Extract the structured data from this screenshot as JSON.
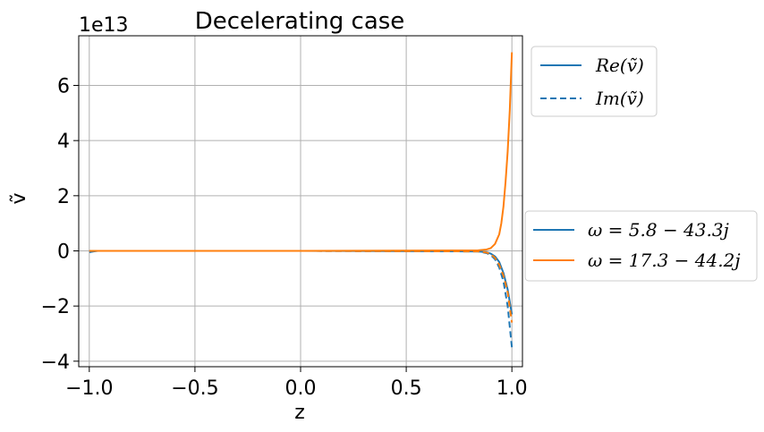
{
  "chart_data": {
    "type": "line",
    "title": "Decelerating case",
    "xlabel": "z",
    "ylabel": "ṽ",
    "y_offset_text": "1e13",
    "xlim": [
      -1.05,
      1.05
    ],
    "ylim": [
      -4.2,
      7.8
    ],
    "y_scale": 10000000000000.0,
    "xticks": [
      -1.0,
      -0.5,
      0.0,
      0.5,
      1.0
    ],
    "xtick_labels": [
      "−1.0",
      "−0.5",
      "0.0",
      "0.5",
      "1.0"
    ],
    "yticks": [
      -4,
      -2,
      0,
      2,
      4,
      6
    ],
    "ytick_labels": [
      "−4",
      "−2",
      "0",
      "2",
      "4",
      "6"
    ],
    "grid": true,
    "legends": [
      {
        "placement": "upper right outside",
        "entries": [
          {
            "label": "Re(ṽ)",
            "style": "solid",
            "color": "#1f77b4"
          },
          {
            "label": "Im(ṽ)",
            "style": "dashed",
            "color": "#1f77b4"
          }
        ]
      },
      {
        "placement": "center right outside",
        "entries": [
          {
            "label": "ω = 5.8 − 43.3j",
            "style": "solid",
            "color": "#1f77b4"
          },
          {
            "label": "ω = 17.3 − 44.2j",
            "style": "solid",
            "color": "#ff7f0e"
          }
        ]
      }
    ],
    "series": [
      {
        "name": "ω = 5.8 − 43.3j",
        "component": "Re(ṽ)",
        "color": "#1f77b4",
        "dash": "solid",
        "x": [
          -1.0,
          -0.98,
          -0.96,
          0.0,
          0.84,
          0.88,
          0.9,
          0.92,
          0.94,
          0.96,
          0.98,
          1.0
        ],
        "y": [
          -0.05,
          -0.02,
          0.0,
          0.0,
          -0.02,
          -0.05,
          -0.1,
          -0.2,
          -0.4,
          -0.8,
          -1.4,
          -2.3
        ]
      },
      {
        "name": "ω = 5.8 − 43.3j",
        "component": "Im(ṽ)",
        "color": "#1f77b4",
        "dash": "dashed",
        "x": [
          -1.0,
          -0.98,
          0.0,
          0.84,
          0.88,
          0.9,
          0.92,
          0.94,
          0.96,
          0.98,
          1.0
        ],
        "y": [
          0.0,
          0.0,
          0.0,
          -0.02,
          -0.08,
          -0.15,
          -0.3,
          -0.6,
          -1.1,
          -2.0,
          -3.5
        ]
      },
      {
        "name": "ω = 17.3 − 44.2j",
        "component": "Re(ṽ)",
        "color": "#ff7f0e",
        "dash": "solid",
        "x": [
          -1.0,
          0.0,
          0.84,
          0.88,
          0.9,
          0.92,
          0.94,
          0.95,
          0.96,
          0.97,
          0.98,
          0.99,
          1.0
        ],
        "y": [
          0.0,
          0.0,
          0.02,
          0.05,
          0.1,
          0.25,
          0.6,
          1.0,
          1.6,
          2.5,
          3.6,
          5.1,
          7.2
        ]
      },
      {
        "name": "ω = 17.3 − 44.2j",
        "component": "Im(ṽ)",
        "color": "#ff7f0e",
        "dash": "dashed",
        "x": [
          -1.0,
          0.0,
          0.84,
          0.88,
          0.9,
          0.92,
          0.94,
          0.96,
          0.98,
          1.0
        ],
        "y": [
          0.0,
          0.0,
          -0.02,
          -0.06,
          -0.12,
          -0.25,
          -0.5,
          -0.9,
          -1.5,
          -2.6
        ]
      }
    ]
  }
}
